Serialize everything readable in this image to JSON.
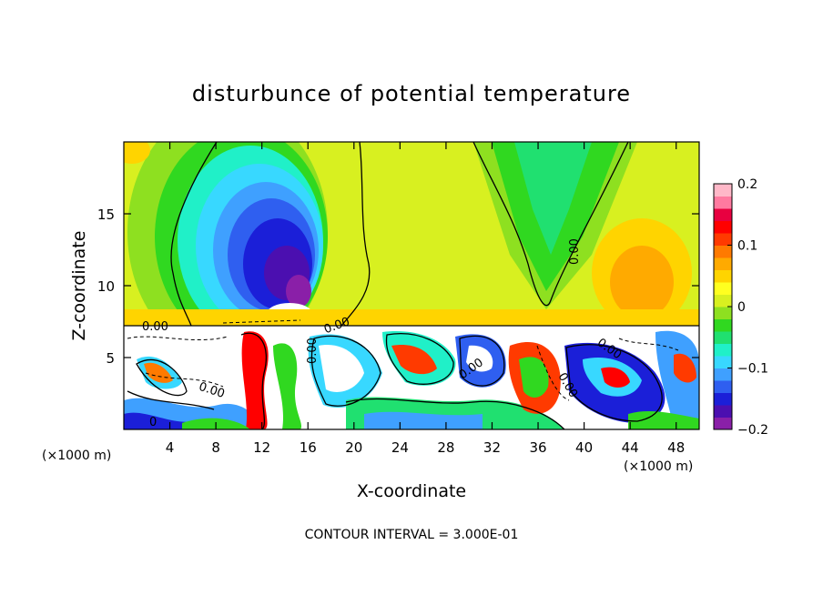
{
  "chart_data": {
    "type": "heatmap",
    "title": "disturbunce of potential temperature",
    "xlabel": "X-coordinate",
    "ylabel": "Z-coordinate",
    "x_unit": "(×1000 m)",
    "x_unit_right": "(×1000 m)",
    "xlim": [
      0,
      50
    ],
    "ylim": [
      0,
      20
    ],
    "x_ticks": [
      4,
      8,
      12,
      16,
      20,
      24,
      28,
      32,
      36,
      40,
      44,
      48
    ],
    "y_ticks": [
      5,
      10,
      15
    ],
    "colorbar": {
      "range": [
        -0.2,
        0.2
      ],
      "tick_labels": [
        "0.2",
        "0.1",
        "0",
        "−0.1",
        "−0.2"
      ],
      "tick_values": [
        0.2,
        0.1,
        0,
        -0.1,
        -0.2
      ],
      "colors": [
        "#8a1fa8",
        "#4b0fb0",
        "#1b1fd8",
        "#2f5ff0",
        "#3fa0ff",
        "#38d8ff",
        "#20f0c8",
        "#20e070",
        "#30d820",
        "#8ee020",
        "#d8f020",
        "#ffff20",
        "#ffd400",
        "#ffaa00",
        "#ff7a00",
        "#ff3a00",
        "#ff0000",
        "#e80040",
        "#ff7aa0",
        "#ffb8c8"
      ]
    },
    "contour_labels": [
      "0.00",
      "0.00",
      "0.00",
      "0.00",
      "0.00",
      "0.00",
      "0.00",
      "0.00",
      "0"
    ],
    "contour_interval_text": "CONTOUR INTERVAL = 3.000E-01",
    "field_features": [
      {
        "kind": "cold-anomaly",
        "x": 14,
        "z": 11,
        "value": -0.2
      },
      {
        "kind": "warm-anomaly",
        "x": 43,
        "z": 11,
        "value": 0.1
      },
      {
        "kind": "cool-anomaly",
        "x": 36,
        "z": 18,
        "value": -0.05
      },
      {
        "kind": "turbulent-layer",
        "z_top": 7.2
      }
    ]
  }
}
